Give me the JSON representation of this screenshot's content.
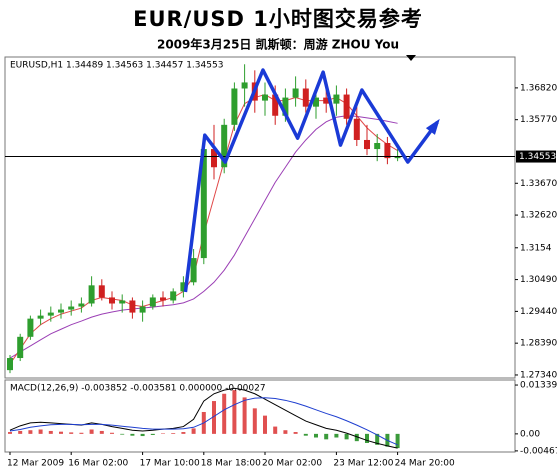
{
  "chart_data": [
    {
      "type": "candlestick",
      "title": "EUR/USD 1小时图交易参考",
      "subtitle": "2009年3月25日 凯斯顿：周游 ZHOU You",
      "header": "EURUSD,H1  1.34489 1.34563 1.34457 1.34553",
      "categories": [
        "12 Mar 2009",
        null,
        null,
        null,
        null,
        null,
        "16 Mar 02:00",
        null,
        null,
        null,
        null,
        null,
        null,
        "17 Mar 10:00",
        null,
        null,
        null,
        null,
        null,
        "18 Mar 18:00",
        null,
        null,
        null,
        null,
        null,
        "20 Mar 02:00",
        null,
        null,
        null,
        null,
        null,
        null,
        "23 Mar 12:00",
        null,
        null,
        null,
        null,
        null,
        "24 Mar 20:00"
      ],
      "ohlc": [
        [
          1.275,
          1.28,
          1.274,
          1.279
        ],
        [
          1.279,
          1.287,
          1.278,
          1.286
        ],
        [
          1.286,
          1.293,
          1.285,
          1.292
        ],
        [
          1.292,
          1.295,
          1.29,
          1.293
        ],
        [
          1.293,
          1.296,
          1.291,
          1.294
        ],
        [
          1.294,
          1.297,
          1.292,
          1.295
        ],
        [
          1.295,
          1.298,
          1.293,
          1.296
        ],
        [
          1.296,
          1.299,
          1.294,
          1.297
        ],
        [
          1.297,
          1.306,
          1.296,
          1.303
        ],
        [
          1.303,
          1.305,
          1.298,
          1.299
        ],
        [
          1.299,
          1.301,
          1.295,
          1.297
        ],
        [
          1.297,
          1.3,
          1.294,
          1.298
        ],
        [
          1.298,
          1.299,
          1.292,
          1.294
        ],
        [
          1.294,
          1.298,
          1.291,
          1.296
        ],
        [
          1.296,
          1.3,
          1.295,
          1.299
        ],
        [
          1.299,
          1.301,
          1.296,
          1.298
        ],
        [
          1.298,
          1.302,
          1.297,
          1.301
        ],
        [
          1.301,
          1.306,
          1.299,
          1.304
        ],
        [
          1.304,
          1.315,
          1.303,
          1.312
        ],
        [
          1.312,
          1.352,
          1.31,
          1.348
        ],
        [
          1.348,
          1.356,
          1.338,
          1.342
        ],
        [
          1.342,
          1.358,
          1.34,
          1.356
        ],
        [
          1.356,
          1.37,
          1.354,
          1.368
        ],
        [
          1.368,
          1.376,
          1.362,
          1.37
        ],
        [
          1.37,
          1.374,
          1.36,
          1.364
        ],
        [
          1.364,
          1.37,
          1.359,
          1.366
        ],
        [
          1.366,
          1.369,
          1.356,
          1.359
        ],
        [
          1.359,
          1.368,
          1.357,
          1.365
        ],
        [
          1.365,
          1.372,
          1.362,
          1.368
        ],
        [
          1.368,
          1.371,
          1.36,
          1.362
        ],
        [
          1.362,
          1.368,
          1.358,
          1.365
        ],
        [
          1.365,
          1.369,
          1.36,
          1.363
        ],
        [
          1.363,
          1.369,
          1.359,
          1.366
        ],
        [
          1.366,
          1.368,
          1.356,
          1.358
        ],
        [
          1.358,
          1.362,
          1.349,
          1.351
        ],
        [
          1.351,
          1.356,
          1.346,
          1.348
        ],
        [
          1.348,
          1.353,
          1.344,
          1.35
        ],
        [
          1.35,
          1.352,
          1.343,
          1.345
        ],
        [
          1.345,
          1.348,
          1.344,
          1.34553
        ]
      ],
      "up_color": "#2e9e2e",
      "down_color": "#d02020",
      "moving_averages": [
        {
          "color": "#9b3fb5",
          "values": [
            1.279,
            1.281,
            1.283,
            1.285,
            1.287,
            1.2885,
            1.29,
            1.2912,
            1.2925,
            1.2935,
            1.2942,
            1.2948,
            1.2952,
            1.2955,
            1.2958,
            1.2962,
            1.2966,
            1.2972,
            1.2985,
            1.301,
            1.304,
            1.308,
            1.313,
            1.319,
            1.325,
            1.331,
            1.337,
            1.342,
            1.347,
            1.351,
            1.3545,
            1.357,
            1.3585,
            1.359,
            1.3588,
            1.3583,
            1.3578,
            1.3572,
            1.3565
          ]
        },
        {
          "color": "#e04848",
          "values": [
            1.277,
            1.282,
            1.287,
            1.29,
            1.292,
            1.2935,
            1.2945,
            1.2955,
            1.298,
            1.299,
            1.2985,
            1.298,
            1.2965,
            1.296,
            1.297,
            1.298,
            1.299,
            1.301,
            1.306,
            1.32,
            1.332,
            1.344,
            1.356,
            1.363,
            1.365,
            1.366,
            1.364,
            1.364,
            1.365,
            1.364,
            1.364,
            1.364,
            1.365,
            1.363,
            1.359,
            1.355,
            1.352,
            1.3495,
            1.3475
          ]
        }
      ],
      "annotation_line": {
        "color": "#1a3ad6",
        "x": [
          17.2,
          19.1,
          21.1,
          24.8,
          28.2,
          30.7,
          32.4,
          34.5,
          39,
          41.9
        ],
        "y": [
          1.3008,
          1.3526,
          1.3437,
          1.3741,
          1.3516,
          1.3734,
          1.3493,
          1.3675,
          1.3437,
          1.3569
        ]
      },
      "last_price": 1.34553,
      "ylim": [
        1.2724,
        1.3784
      ],
      "yticks": [
        {
          "value": 1.3682,
          "label": "1.36820"
        },
        {
          "value": 1.3577,
          "label": "1.35770"
        },
        {
          "value": 1.3367,
          "label": "1.33670"
        },
        {
          "value": 1.3262,
          "label": "1.32620"
        },
        1.3154,
        {
          "value": 1.3049,
          "label": "1.30490"
        },
        {
          "value": 1.2944,
          "label": "1.29440"
        },
        {
          "value": 1.2839,
          "label": "1.28390"
        },
        {
          "value": 1.2734,
          "label": "1.27340"
        }
      ]
    },
    {
      "type": "macd",
      "header": "MACD(12,26,9) -0.003852 -0.003581 0.000000 -0.00027",
      "histogram": [
        0.0005,
        0.0008,
        0.001,
        0.0012,
        0.0008,
        0.0006,
        0.0004,
        0.0003,
        0.0012,
        0.0008,
        0.0003,
        -0.0002,
        -0.0005,
        -0.0006,
        -0.0003,
        0.0001,
        0.0002,
        0.0005,
        0.0015,
        0.006,
        0.009,
        0.011,
        0.012,
        0.01,
        0.007,
        0.005,
        0.002,
        0.001,
        0.0005,
        -0.0005,
        -0.001,
        -0.0015,
        -0.001,
        -0.0015,
        -0.002,
        -0.0025,
        -0.003,
        -0.0035,
        -0.0039
      ],
      "up_color": "#e05050",
      "down_color": "#3a9a3a",
      "series": [
        {
          "color": "#000000",
          "values": [
            0.001,
            0.0022,
            0.003,
            0.0032,
            0.003,
            0.0028,
            0.0026,
            0.0024,
            0.003,
            0.0026,
            0.002,
            0.0015,
            0.001,
            0.0008,
            0.001,
            0.0013,
            0.0015,
            0.002,
            0.004,
            0.009,
            0.011,
            0.012,
            0.0125,
            0.012,
            0.011,
            0.0095,
            0.008,
            0.0065,
            0.005,
            0.0035,
            0.0025,
            0.0015,
            0.001,
            0.0002,
            -0.0008,
            -0.0018,
            -0.0026,
            -0.0033,
            -0.0039
          ]
        },
        {
          "color": "#1f3fd0",
          "values": [
            0.0008,
            0.0012,
            0.0018,
            0.0022,
            0.0025,
            0.0026,
            0.0026,
            0.0025,
            0.0026,
            0.0026,
            0.0024,
            0.0021,
            0.0018,
            0.0015,
            0.0013,
            0.0013,
            0.0013,
            0.0014,
            0.0018,
            0.003,
            0.0048,
            0.0066,
            0.008,
            0.0092,
            0.0098,
            0.0099,
            0.0097,
            0.0092,
            0.0085,
            0.0076,
            0.0066,
            0.0056,
            0.0047,
            0.0036,
            0.0024,
            0.0011,
            -0.0003,
            -0.0018,
            -0.003
          ]
        }
      ],
      "ylim": [
        -0.0047,
        0.0145
      ],
      "yticks": [
        0.013392,
        {
          "value": 0,
          "label": "0.00"
        },
        -0.00467
      ]
    }
  ]
}
